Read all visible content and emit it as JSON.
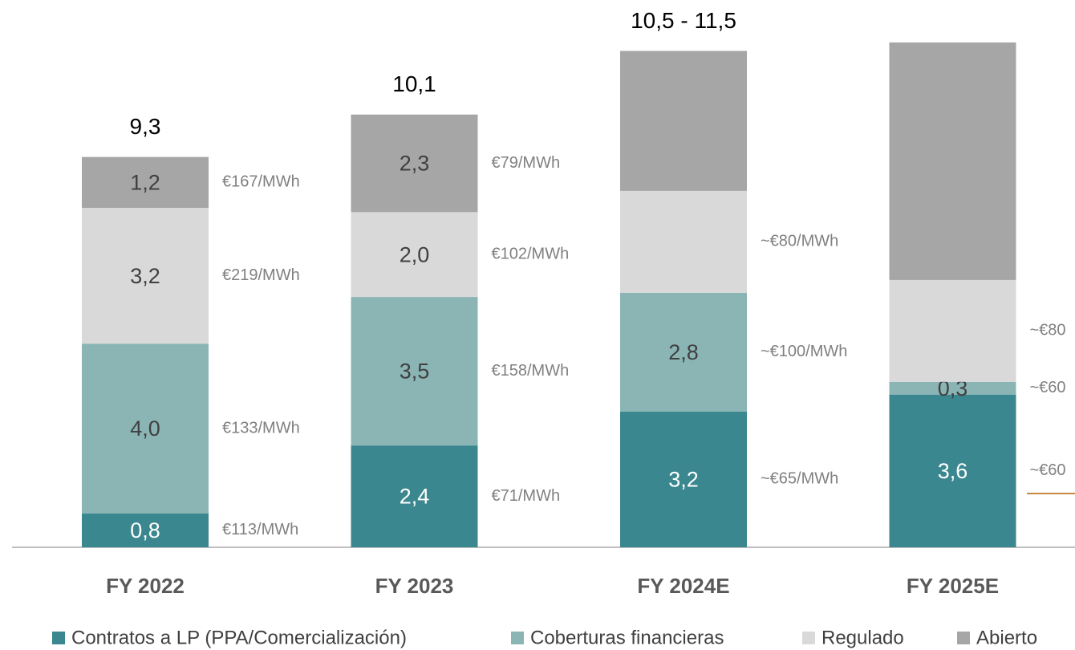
{
  "chart_data": {
    "type": "stacked_bar",
    "categories": [
      "FY 2022",
      "FY 2023",
      "FY 2024E",
      "FY 2025E"
    ],
    "total_labels": [
      "9,3",
      "10,1",
      "10,5 - 11,5",
      null
    ],
    "ylim": [
      0,
      12.9
    ],
    "series": [
      {
        "name": "Contratos a LP (PPA/Comercialización)",
        "color": "#3b878f",
        "values": [
          0.8,
          2.4,
          3.2,
          3.6
        ],
        "value_labels": [
          "0,8",
          "2,4",
          "3,2",
          "3,6"
        ],
        "price_labels": [
          "€113/MWh",
          "€71/MWh",
          "~€65/MWh",
          "~€60"
        ]
      },
      {
        "name": "Coberturas financieras",
        "color": "#8bb5b5",
        "values": [
          4.0,
          3.5,
          2.8,
          0.3
        ],
        "value_labels": [
          "4,0",
          "3,5",
          "2,8",
          "0,3"
        ],
        "price_labels": [
          "€133/MWh",
          "€158/MWh",
          "~€100/MWh",
          "~€60"
        ]
      },
      {
        "name": "Regulado",
        "color": "#d9d9d9",
        "values": [
          3.2,
          2.0,
          2.4,
          2.4
        ],
        "value_labels": [
          "3,2",
          "2,0",
          null,
          null
        ],
        "price_labels": [
          "€219/MWh",
          "€102/MWh",
          "~€80/MWh",
          "~€80"
        ]
      },
      {
        "name": "Abierto",
        "color": "#a6a6a6",
        "values": [
          1.2,
          2.3,
          3.3,
          5.6
        ],
        "value_labels": [
          "1,2",
          "2,3",
          null,
          null
        ],
        "price_labels": [
          "€167/MWh",
          "€79/MWh",
          null,
          null
        ]
      }
    ]
  }
}
